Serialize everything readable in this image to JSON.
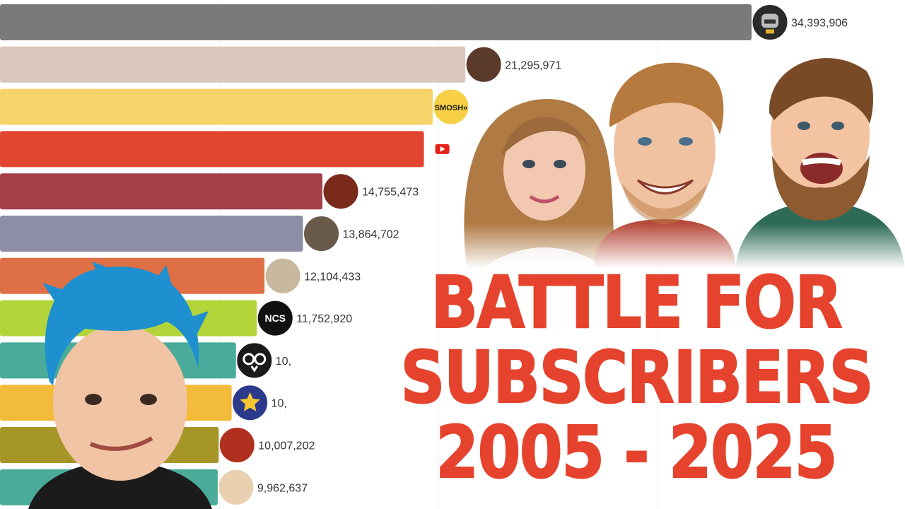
{
  "chart_data": {
    "type": "bar",
    "orientation": "horizontal",
    "grid": true,
    "xlim": [
      0,
      35000000
    ],
    "bars": [
      {
        "value": 34393906,
        "label": "34,393,906",
        "color": "#7a7a7a",
        "avatar": "robot-helmet-avatar-icon"
      },
      {
        "value": 21295971,
        "label": "21,295,971",
        "color": "#d9c6bc",
        "avatar": "laughing-man-avatar-icon"
      },
      {
        "value": 19800000,
        "label": "",
        "color": "#f7d46a",
        "avatar": "smosh-logo-icon",
        "avatar_text": "SMOSH»"
      },
      {
        "value": 19400000,
        "label": "",
        "color": "#e2452f",
        "avatar": "youtube-logo-icon"
      },
      {
        "value": 14755473,
        "label": "14,755,473",
        "color": "#a3404a",
        "avatar": "character-avatar-icon"
      },
      {
        "value": 13864702,
        "label": "13,864,702",
        "color": "#8c8ea8",
        "avatar": "man-portrait-avatar-icon"
      },
      {
        "value": 12104433,
        "label": "12,104,433",
        "color": "#df6f44",
        "avatar": "cartoon-duo-avatar-icon"
      },
      {
        "value": 11752920,
        "label": "11,752,920",
        "color": "#b3d53a",
        "avatar": "ncs-logo-icon",
        "avatar_text": "NCS"
      },
      {
        "value": 10800000,
        "label": "10,",
        "color": "#4aab9a",
        "avatar": "owl-logo-icon"
      },
      {
        "value": 10600000,
        "label": "10,",
        "color": "#f2bb3a",
        "avatar": "star-mascot-avatar-icon"
      },
      {
        "value": 10007202,
        "label": "10,007,202",
        "color": "#a69627",
        "avatar": "boy-avatar-icon"
      },
      {
        "value": 9962637,
        "label": "9,962,637",
        "color": "#4aab9a",
        "avatar": "sunglasses-avatar-icon"
      }
    ]
  },
  "title": {
    "line1": "BATTLE FOR",
    "line2": "SUBSCRIBERS",
    "line3": "2005 - 2025"
  },
  "colors": {
    "title": "#e5432d",
    "grid": "#ececec"
  }
}
